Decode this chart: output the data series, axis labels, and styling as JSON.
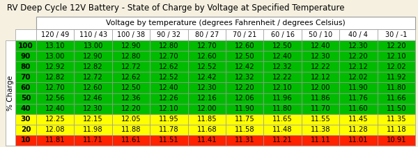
{
  "title": "RV Deep Cycle 12V Battery - State of Charge by Voltage at Specified Temperature",
  "col_header": "Voltage by temperature (degrees Fahrenheit / degrees Celsius)",
  "col_labels": [
    "120 / 49",
    "110 / 43",
    "100 / 38",
    "90 / 32",
    "80 / 27",
    "70 / 21",
    "60 / 16",
    "50 / 10",
    "40 / 4",
    "30 / -1"
  ],
  "row_labels": [
    "100",
    "90",
    "80",
    "70",
    "60",
    "50",
    "40",
    "30",
    "20",
    "10"
  ],
  "row_axis_label": "% Charge",
  "table_data": [
    [
      13.1,
      13.0,
      12.9,
      12.8,
      12.7,
      12.6,
      12.5,
      12.4,
      12.3,
      12.2
    ],
    [
      13.0,
      12.9,
      12.8,
      12.7,
      12.6,
      12.5,
      12.4,
      12.3,
      12.2,
      12.1
    ],
    [
      12.92,
      12.82,
      12.72,
      12.62,
      12.52,
      12.42,
      12.32,
      12.22,
      12.12,
      12.02
    ],
    [
      12.82,
      12.72,
      12.62,
      12.52,
      12.42,
      12.32,
      12.22,
      12.12,
      12.02,
      11.92
    ],
    [
      12.7,
      12.6,
      12.5,
      12.4,
      12.3,
      12.2,
      12.1,
      12.0,
      11.9,
      11.8
    ],
    [
      12.56,
      12.46,
      12.36,
      12.26,
      12.16,
      12.06,
      11.96,
      11.86,
      11.76,
      11.66
    ],
    [
      12.4,
      12.3,
      12.2,
      12.1,
      12.0,
      11.9,
      11.8,
      11.7,
      11.6,
      11.5
    ],
    [
      12.25,
      12.15,
      12.05,
      11.95,
      11.85,
      11.75,
      11.65,
      11.55,
      11.45,
      11.35
    ],
    [
      12.08,
      11.98,
      11.88,
      11.78,
      11.68,
      11.58,
      11.48,
      11.38,
      11.28,
      11.18
    ],
    [
      11.81,
      11.71,
      11.61,
      11.51,
      11.41,
      11.31,
      11.21,
      11.11,
      11.01,
      10.91
    ]
  ],
  "row_colors": [
    "#00bb00",
    "#00bb00",
    "#00bb00",
    "#00bb00",
    "#00bb00",
    "#00bb00",
    "#00bb00",
    "#ffff00",
    "#ffff00",
    "#ff2200"
  ],
  "title_fontsize": 8.5,
  "header_fontsize": 7.8,
  "sublabel_fontsize": 7.0,
  "cell_fontsize": 7.2,
  "row_label_fontsize": 7.5,
  "bg_color": "#f5f0e0",
  "header_bg": "#ffffff",
  "border_color": "#999999"
}
